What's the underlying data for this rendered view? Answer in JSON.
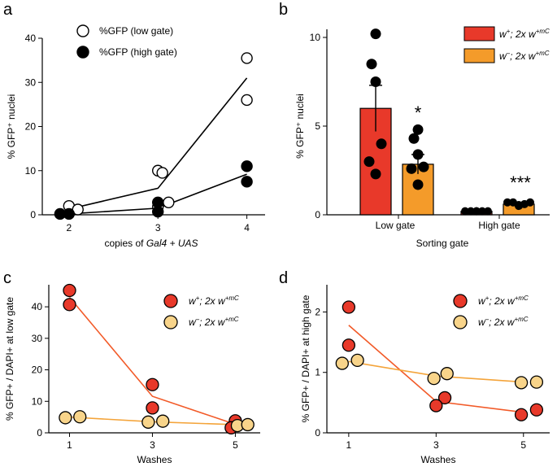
{
  "chart_data": [
    {
      "panel": "a",
      "type": "scatter",
      "title": "",
      "xlabel_prefix": "copies of ",
      "xlabel_italic": "Gal4 + UAS",
      "ylabel": "% GFP⁺ nuclei",
      "xlim": [
        1.7,
        4.15
      ],
      "ylim": [
        0,
        40
      ],
      "xticks": [
        2,
        3,
        4
      ],
      "yticks": [
        0,
        10,
        20,
        30,
        40
      ],
      "legend_position": "top-left",
      "series": [
        {
          "name": "%GFP (low gate)",
          "fill": "#ffffff",
          "points": [
            [
              2,
              2
            ],
            [
              2.1,
              1.2
            ],
            [
              3,
              10
            ],
            [
              3.05,
              9.5
            ],
            [
              3,
              1.8
            ],
            [
              3.12,
              2.8
            ],
            [
              4,
              35.5
            ],
            [
              4,
              26
            ]
          ],
          "fit": [
            [
              2,
              1.3
            ],
            [
              3,
              6
            ],
            [
              4,
              31
            ]
          ]
        },
        {
          "name": "%GFP (high gate)",
          "fill": "#000000",
          "points": [
            [
              1.9,
              0.2
            ],
            [
              2,
              0.2
            ],
            [
              3,
              2.8
            ],
            [
              3,
              0.7
            ],
            [
              4,
              11
            ],
            [
              4,
              7.5
            ]
          ],
          "fit": [
            [
              2,
              0.2
            ],
            [
              3,
              1.5
            ],
            [
              4,
              9.2
            ]
          ]
        }
      ]
    },
    {
      "panel": "b",
      "type": "bar",
      "xlabel": "Sorting gate",
      "ylabel": "% GFP⁺ nuclei",
      "ylim": [
        0,
        10.5
      ],
      "yticks": [
        0,
        5,
        10
      ],
      "categories": [
        "Low gate",
        "High gate"
      ],
      "legend_position": "top-right",
      "series": [
        {
          "name_base": "w",
          "name_sup": "+",
          "name_rest": "; 2x w",
          "name_rest_sup": "+mC",
          "color": "#e8392a",
          "values": [
            6.0,
            0.2
          ],
          "errors": [
            1.3,
            0.05
          ],
          "points": [
            [
              10.2,
              8.5,
              7.5,
              4.0,
              3.0,
              2.3
            ],
            [
              0.2,
              0.2,
              0.2,
              0.2,
              0.2,
              0.2
            ]
          ]
        },
        {
          "name_base": "w",
          "name_sup": "–",
          "name_rest": "; 2x w",
          "name_rest_sup": "+mC",
          "color": "#f49b2a",
          "values": [
            2.85,
            0.6
          ],
          "errors": [
            0.55,
            0.1
          ],
          "points": [
            [
              4.8,
              4.3,
              3.4,
              2.7,
              2.6,
              1.7
            ],
            [
              0.7,
              0.7,
              0.5,
              0.6,
              0.7,
              0.55
            ]
          ]
        }
      ],
      "annotations": [
        "*",
        "***"
      ]
    },
    {
      "panel": "c",
      "type": "scatter",
      "xlabel": "Washes",
      "ylabel": "% GFP+ / DAPI+ at low gate",
      "xlim": [
        0.5,
        5.6
      ],
      "ylim": [
        0,
        47
      ],
      "xticks": [
        1,
        3,
        5
      ],
      "yticks": [
        0,
        10,
        20,
        30,
        40
      ],
      "legend_position": "top-right",
      "series": [
        {
          "name_base": "w",
          "name_sup": "+",
          "name_rest": "; 2x w",
          "name_rest_sup": "+mC",
          "color": "#e8392a",
          "points": [
            [
              1,
              45.2
            ],
            [
              1,
              40.7
            ],
            [
              3,
              15.3
            ],
            [
              3,
              7.9
            ],
            [
              5,
              3.8
            ],
            [
              4.9,
              1.6
            ]
          ],
          "fit": [
            [
              1,
              43
            ],
            [
              3,
              11.6
            ],
            [
              5,
              2.7
            ]
          ]
        },
        {
          "name_base": "w",
          "name_sup": "–",
          "name_rest": "; 2x w",
          "name_rest_sup": "+mC",
          "color": "#f8d48a",
          "points": [
            [
              0.9,
              4.8
            ],
            [
              1.25,
              5.1
            ],
            [
              2.9,
              3.4
            ],
            [
              3.25,
              3.7
            ],
            [
              5.05,
              2.3
            ],
            [
              5.3,
              2.6
            ]
          ],
          "fit": [
            [
              1,
              5.0
            ],
            [
              3,
              3.5
            ],
            [
              5,
              2.6
            ]
          ]
        }
      ]
    },
    {
      "panel": "d",
      "type": "scatter",
      "xlabel": "Washes",
      "ylabel": "% GFP+ / DAPI+ at high gate",
      "xlim": [
        0.5,
        5.6
      ],
      "ylim": [
        0,
        2.45
      ],
      "xticks": [
        1,
        3,
        5
      ],
      "yticks": [
        0,
        1,
        2
      ],
      "legend_position": "top-right",
      "series": [
        {
          "name_base": "w",
          "name_sup": "+",
          "name_rest": "; 2x w",
          "name_rest_sup": "+mC",
          "color": "#e8392a",
          "points": [
            [
              1,
              2.08
            ],
            [
              1,
              1.45
            ],
            [
              3.2,
              0.58
            ],
            [
              3,
              0.45
            ],
            [
              4.95,
              0.3
            ],
            [
              5.3,
              0.38
            ]
          ],
          "fit": [
            [
              1,
              1.78
            ],
            [
              3,
              0.52
            ],
            [
              5,
              0.34
            ]
          ]
        },
        {
          "name_base": "w",
          "name_sup": "–",
          "name_rest": "; 2x w",
          "name_rest_sup": "+mC",
          "color": "#f8d48a",
          "points": [
            [
              0.85,
              1.15
            ],
            [
              1.2,
              1.2
            ],
            [
              2.95,
              0.9
            ],
            [
              3.25,
              0.98
            ],
            [
              4.95,
              0.83
            ],
            [
              5.3,
              0.84
            ]
          ],
          "fit": [
            [
              1,
              1.18
            ],
            [
              3,
              0.94
            ],
            [
              5,
              0.84
            ]
          ]
        }
      ]
    }
  ]
}
